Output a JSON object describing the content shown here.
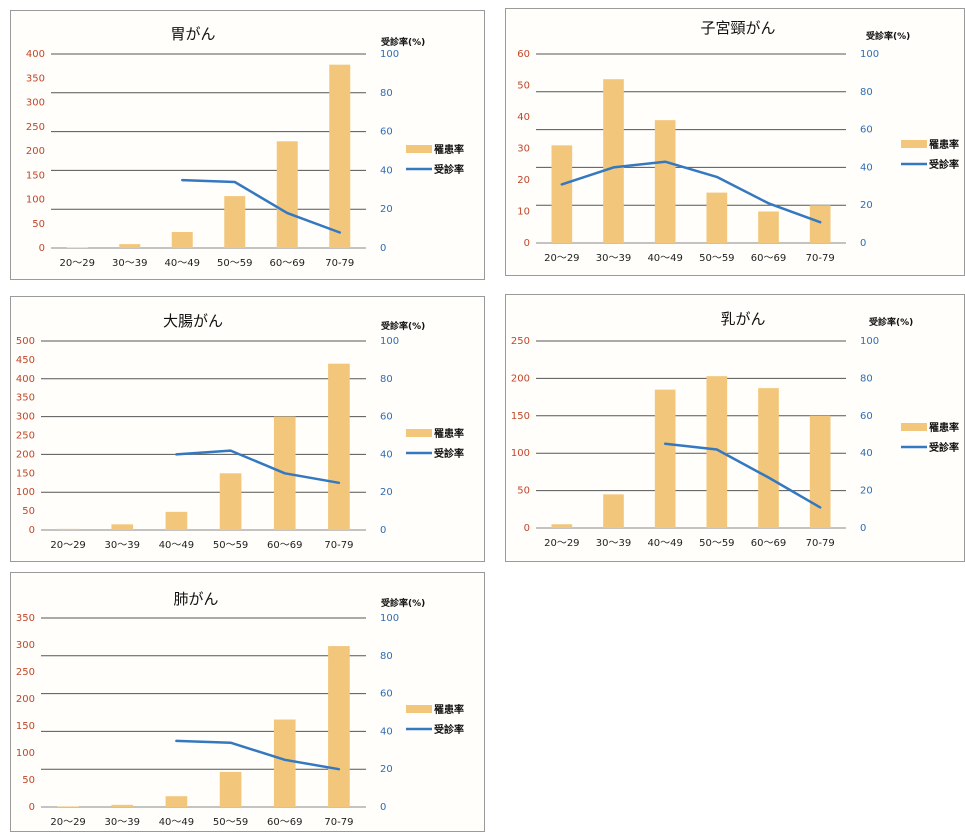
{
  "chart_data": [
    {
      "type": "bar+line",
      "title": "胃がん",
      "categories": [
        "20〜29",
        "30〜39",
        "40〜49",
        "50〜59",
        "60〜69",
        "70-79"
      ],
      "series": [
        {
          "name": "罹患率",
          "type": "bar",
          "axis": "left",
          "values": [
            1,
            8,
            33,
            107,
            220,
            378
          ]
        },
        {
          "name": "受診率",
          "type": "line",
          "axis": "right",
          "values": [
            null,
            null,
            35,
            34,
            18,
            8
          ]
        }
      ],
      "ylim_left": [
        0,
        400
      ],
      "yticks_left": [
        0,
        50,
        100,
        150,
        200,
        250,
        300,
        350,
        400
      ],
      "ylim_right": [
        0,
        100
      ],
      "yticks_right": [
        0,
        20,
        40,
        60,
        80,
        100
      ],
      "right_axis_title": "受診率(%)",
      "legend": [
        "罹患率",
        "受診率"
      ]
    },
    {
      "type": "bar+line",
      "title": "子宮頸がん",
      "categories": [
        "20〜29",
        "30〜39",
        "40〜49",
        "50〜59",
        "60〜69",
        "70-79"
      ],
      "series": [
        {
          "name": "罹患率",
          "type": "bar",
          "axis": "left",
          "values": [
            31,
            52,
            39,
            16,
            10,
            12
          ]
        },
        {
          "name": "受診率",
          "type": "line",
          "axis": "right",
          "values": [
            31,
            40,
            43,
            35,
            21,
            11
          ]
        }
      ],
      "ylim_left": [
        0,
        60
      ],
      "yticks_left": [
        0,
        10,
        20,
        30,
        40,
        50,
        60
      ],
      "ylim_right": [
        0,
        100
      ],
      "yticks_right": [
        0,
        20,
        40,
        60,
        80,
        100
      ],
      "right_axis_title": "受診率(%)",
      "legend": [
        "罹患率",
        "受診率"
      ]
    },
    {
      "type": "bar+line",
      "title": "大腸がん",
      "categories": [
        "20〜29",
        "30〜39",
        "40〜49",
        "50〜59",
        "60〜69",
        "70-79"
      ],
      "series": [
        {
          "name": "罹患率",
          "type": "bar",
          "axis": "left",
          "values": [
            3,
            15,
            48,
            150,
            300,
            440
          ]
        },
        {
          "name": "受診率",
          "type": "line",
          "axis": "right",
          "values": [
            null,
            null,
            40,
            42,
            30,
            25
          ]
        }
      ],
      "ylim_left": [
        0,
        500
      ],
      "yticks_left": [
        0,
        50,
        100,
        150,
        200,
        250,
        300,
        350,
        400,
        450,
        500
      ],
      "ylim_right": [
        0,
        100
      ],
      "yticks_right": [
        0,
        20,
        40,
        60,
        80,
        100
      ],
      "right_axis_title": "受診率(%)",
      "legend": [
        "罹患率",
        "受診率"
      ]
    },
    {
      "type": "bar+line",
      "title": "乳がん",
      "categories": [
        "20〜29",
        "30〜39",
        "40〜49",
        "50〜59",
        "60〜69",
        "70-79"
      ],
      "series": [
        {
          "name": "罹患率",
          "type": "bar",
          "axis": "left",
          "values": [
            5,
            45,
            185,
            203,
            187,
            150
          ]
        },
        {
          "name": "受診率",
          "type": "line",
          "axis": "right",
          "values": [
            null,
            null,
            45,
            42,
            27,
            11
          ]
        }
      ],
      "ylim_left": [
        0,
        250
      ],
      "yticks_left": [
        0,
        50,
        100,
        150,
        200,
        250
      ],
      "ylim_right": [
        0,
        100
      ],
      "yticks_right": [
        0,
        20,
        40,
        60,
        80,
        100
      ],
      "right_axis_title": "受診率(%)",
      "legend": [
        "罹患率",
        "受診率"
      ]
    },
    {
      "type": "bar+line",
      "title": "肺がん",
      "categories": [
        "20〜29",
        "30〜39",
        "40〜49",
        "50〜59",
        "60〜69",
        "70-79"
      ],
      "series": [
        {
          "name": "罹患率",
          "type": "bar",
          "axis": "left",
          "values": [
            1,
            4,
            20,
            65,
            162,
            298
          ]
        },
        {
          "name": "受診率",
          "type": "line",
          "axis": "right",
          "values": [
            null,
            null,
            35,
            34,
            25,
            20
          ]
        }
      ],
      "ylim_left": [
        0,
        350
      ],
      "yticks_left": [
        0,
        50,
        100,
        150,
        200,
        250,
        300,
        350
      ],
      "ylim_right": [
        0,
        100
      ],
      "yticks_right": [
        0,
        20,
        40,
        60,
        80,
        100
      ],
      "right_axis_title": "受診率(%)",
      "legend": [
        "罹患率",
        "受診率"
      ]
    }
  ],
  "colors": {
    "bar": "#f2c77c",
    "line": "#3478c0",
    "left_tick": "#c0472a",
    "right_tick": "#2f6db3",
    "grid": "#555555"
  }
}
